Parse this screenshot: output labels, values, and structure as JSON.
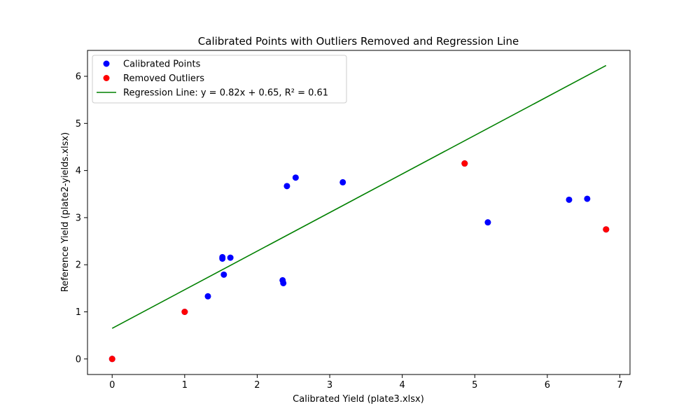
{
  "chart_data": {
    "type": "scatter",
    "title": "Calibrated Points with Outliers Removed and Regression Line",
    "xlabel": "Calibrated Yield (plate3.xlsx)",
    "ylabel": "Reference Yield (plate2-yields.xlsx)",
    "xlim": [
      -0.34,
      7.14
    ],
    "ylim": [
      -0.33,
      6.55
    ],
    "x_ticks": [
      0,
      1,
      2,
      3,
      4,
      5,
      6,
      7
    ],
    "y_ticks": [
      0,
      1,
      2,
      3,
      4,
      5,
      6
    ],
    "grid": false,
    "legend_position": "top-left",
    "series": [
      {
        "name": "Calibrated Points",
        "kind": "scatter",
        "color": "#0000ff",
        "points": [
          [
            0.0,
            0.0
          ],
          [
            1.0,
            1.0
          ],
          [
            1.32,
            1.33
          ],
          [
            1.52,
            2.16
          ],
          [
            1.52,
            2.13
          ],
          [
            1.54,
            1.79
          ],
          [
            1.63,
            2.15
          ],
          [
            2.35,
            1.67
          ],
          [
            2.36,
            1.61
          ],
          [
            2.41,
            3.67
          ],
          [
            2.53,
            3.85
          ],
          [
            3.18,
            3.75
          ],
          [
            4.86,
            4.15
          ],
          [
            5.18,
            2.9
          ],
          [
            6.3,
            3.38
          ],
          [
            6.55,
            3.4
          ],
          [
            6.81,
            2.75
          ]
        ]
      },
      {
        "name": "Removed Outliers",
        "kind": "scatter",
        "color": "#ff0000",
        "points": [
          [
            0.0,
            0.0
          ],
          [
            1.0,
            1.0
          ],
          [
            4.86,
            4.15
          ],
          [
            6.81,
            2.75
          ]
        ]
      },
      {
        "name": "Regression Line: y = 0.82x + 0.65, R² = 0.61",
        "kind": "line",
        "color": "#008000",
        "points": [
          [
            0.0,
            0.65
          ],
          [
            6.81,
            6.23
          ]
        ]
      }
    ]
  }
}
